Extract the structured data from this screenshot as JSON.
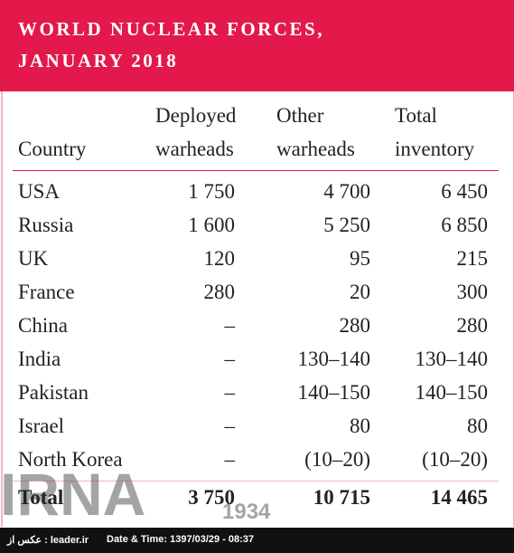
{
  "header": {
    "title_lines": [
      "WORLD NUCLEAR FORCES,",
      "JANUARY 2018"
    ]
  },
  "table": {
    "columns": [
      [
        "Country"
      ],
      [
        "Deployed",
        "warheads"
      ],
      [
        "Other",
        "warheads"
      ],
      [
        "Total",
        "inventory"
      ]
    ],
    "rows": [
      [
        "USA",
        "1 750",
        "4 700",
        "6 450"
      ],
      [
        "Russia",
        "1 600",
        "5 250",
        "6 850"
      ],
      [
        "UK",
        "120",
        "95",
        "215"
      ],
      [
        "France",
        "280",
        "20",
        "300"
      ],
      [
        "China",
        "–",
        "280",
        "280"
      ],
      [
        "India",
        "–",
        "130–140",
        "130–140"
      ],
      [
        "Pakistan",
        "–",
        "140–150",
        "140–150"
      ],
      [
        "Israel",
        "–",
        "80",
        "80"
      ],
      [
        "North Korea",
        "–",
        "(10–20)",
        "(10–20)"
      ]
    ],
    "total": [
      "Total",
      "3 750",
      "10 715",
      "14 465"
    ]
  },
  "watermark": {
    "name": "IRNA",
    "year": "1934"
  },
  "footer": {
    "source": "عکس از : leader.ir",
    "datetime": "Date & Time: 1397/03/29 - 08:37"
  }
}
